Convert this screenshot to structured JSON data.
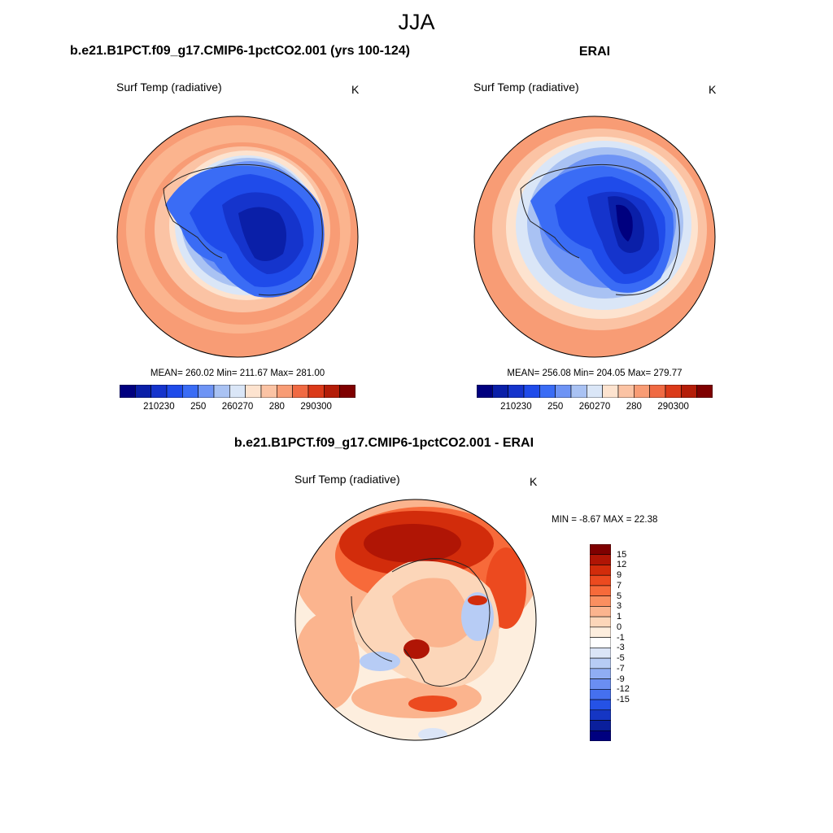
{
  "title": "JJA",
  "panels": [
    {
      "title": "b.e21.B1PCT.f09_g17.CMIP6-1pctCO2.001 (yrs 100-124)",
      "variable": "Surf Temp (radiative)",
      "units": "K",
      "stats": "MEAN= 260.02  Min= 211.67  Max= 281.00"
    },
    {
      "title": "ERAI",
      "variable": "Surf Temp (radiative)",
      "units": "K",
      "stats": "MEAN= 256.08  Min= 204.05  Max= 279.77"
    }
  ],
  "abs_colorbar": {
    "colors": [
      "#00007f",
      "#0a1fa8",
      "#1534cc",
      "#1f4bea",
      "#3a6cf5",
      "#6e94f5",
      "#a9c2f3",
      "#dae6f7",
      "#fde3cf",
      "#fbc3a4",
      "#f89c75",
      "#f06a43",
      "#db3a19",
      "#b41d08",
      "#7f0000"
    ],
    "ticks": [
      "210",
      "230",
      "250",
      "260",
      "270",
      "280",
      "290",
      "300"
    ]
  },
  "diff": {
    "title": "b.e21.B1PCT.f09_g17.CMIP6-1pctCO2.001 - ERAI",
    "variable": "Surf Temp (radiative)",
    "units": "K",
    "stats": "MIN =  -8.67 MAX =  22.38",
    "colorbar": {
      "colors": [
        "#7f0000",
        "#b01505",
        "#d22c0b",
        "#ec4a1f",
        "#f76a3a",
        "#fa8f60",
        "#fbb48e",
        "#fcd6b9",
        "#fdeede",
        "#ffffff",
        "#dbe5f7",
        "#b7ccf5",
        "#8fadf3",
        "#6a8ef2",
        "#4570ef",
        "#2552e6",
        "#1536c4",
        "#0a1f9c",
        "#00007f"
      ],
      "ticks": [
        "15",
        "12",
        "9",
        "7",
        "5",
        "3",
        "1",
        "0",
        "-1",
        "-3",
        "-5",
        "-7",
        "-9",
        "-12",
        "-15"
      ]
    }
  }
}
